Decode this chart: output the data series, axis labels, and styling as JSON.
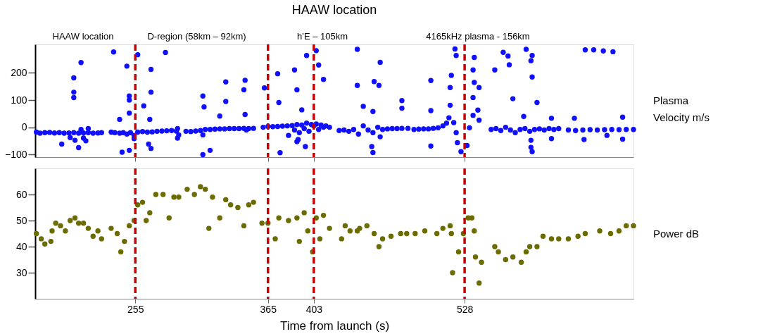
{
  "chart_data": [
    {
      "type": "scatter",
      "title": "HAAW location",
      "annotations": [
        "HAAW location",
        "D-region (58km – 92km)",
        "h’E – 105km",
        "4165kHz plasma - 156km"
      ],
      "ylabel": "Plasma Velocity m/s",
      "xlim": [
        172,
        668
      ],
      "xticks": [
        255,
        365,
        403,
        528
      ],
      "ylim": [
        -110,
        305
      ],
      "yticks": [
        -100,
        0,
        100,
        200
      ],
      "tick_labels": "y",
      "grid": false,
      "marker": "circle",
      "ref_lines": [
        {
          "axis": "x",
          "value": 255,
          "color": "#cc0000",
          "line_style": "dashed"
        },
        {
          "axis": "x",
          "value": 365,
          "color": "#cc0000",
          "line_style": "dashed"
        },
        {
          "axis": "x",
          "value": 403,
          "color": "#cc0000",
          "line_style": "dashed"
        },
        {
          "axis": "x",
          "value": 528,
          "color": "#cc0000",
          "line_style": "dashed"
        }
      ],
      "series": [
        {
          "color": "#1010ff",
          "x": [
            173,
            176,
            180,
            184,
            188,
            192,
            196,
            200,
            204,
            208,
            212,
            216,
            220,
            224,
            227,
            201,
            205,
            212,
            214,
            216,
            210,
            194,
            204,
            204,
            204,
            210,
            208,
            237,
            248,
            250,
            250,
            250,
            242,
            244,
            250,
            235,
            238,
            242,
            245,
            248,
            251,
            254,
            254,
            257,
            280,
            268,
            268,
            262,
            267,
            266,
            268,
            257,
            261,
            265,
            269,
            273,
            277,
            281,
            285,
            289,
            290,
            290,
            291,
            311,
            312,
            330,
            330,
            325,
            311,
            317,
            346,
            345,
            346,
            297,
            301,
            305,
            309,
            311,
            313,
            317,
            321,
            325,
            329,
            333,
            337,
            341,
            345,
            347,
            349,
            353,
            362,
            373,
            374,
            387,
            389,
            393,
            397,
            405,
            407,
            411,
            375,
            389,
            396,
            361,
            365,
            369,
            373,
            377,
            381,
            385,
            387,
            389,
            391,
            393,
            395,
            397,
            399,
            401,
            403,
            405,
            407,
            409,
            411,
            413,
            416,
            382,
            390,
            439,
            439,
            458,
            453,
            457,
            444,
            476,
            476,
            452,
            451,
            452,
            424,
            428,
            432,
            436,
            440,
            444,
            448,
            452,
            456,
            458,
            460,
            464,
            468,
            472,
            476,
            481,
            486,
            490,
            494,
            498,
            502,
            506,
            510,
            513,
            500,
            500,
            500,
            517,
            520,
            521,
            515,
            516,
            516,
            519,
            521,
            522,
            525,
            530,
            532,
            535,
            535,
            536,
            535,
            536,
            539,
            540,
            540,
            553,
            560,
            564,
            565,
            579,
            584,
            583,
            584,
            568,
            588,
            577,
            600,
            583,
            583,
            584,
            600,
            550,
            554,
            558,
            562,
            566,
            570,
            574,
            578,
            582,
            586,
            590,
            594,
            598,
            602,
            606,
            628,
            635,
            643,
            651,
            619,
            659,
            627,
            646,
            659,
            614,
            620,
            626,
            632,
            638,
            644,
            650,
            656,
            662,
            668
          ],
          "values": [
            -18,
            -22,
            -20,
            -19,
            -21,
            -20,
            -22,
            -21,
            -20,
            -22,
            -21,
            -20,
            -22,
            -21,
            -20,
            -38,
            -48,
            -40,
            -50,
            -5,
            -8,
            -62,
            182,
            129,
            109,
            238,
            -75,
            277,
            225,
            115,
            100,
            52,
            29,
            -92,
            -85,
            -18,
            -20,
            -22,
            -20,
            -25,
            -20,
            -30,
            -42,
            267,
            275,
            213,
            129,
            79,
            29,
            -62,
            -78,
            -18,
            -16,
            -18,
            -17,
            -15,
            -14,
            -13,
            -12,
            -14,
            -40,
            -5,
            -28,
            115,
            75,
            167,
            95,
            41,
            -101,
            -85,
            173,
            138,
            47,
            -15,
            -16,
            -14,
            -12,
            -28,
            -8,
            -8,
            -7,
            -6,
            -6,
            -5,
            -5,
            -5,
            -4,
            -10,
            -5,
            -4,
            145,
            197,
            91,
            211,
            138,
            64,
            264,
            282,
            229,
            176,
            -94,
            -53,
            -71,
            0,
            3,
            2,
            3,
            4,
            5,
            6,
            -10,
            10,
            -20,
            8,
            -5,
            15,
            -15,
            10,
            5,
            12,
            -8,
            8,
            0,
            5,
            0,
            -30,
            -45,
            287,
            154,
            239,
            168,
            154,
            77,
            98,
            70,
            58,
            -71,
            -93,
            -12,
            -10,
            -15,
            -8,
            -25,
            5,
            -10,
            -20,
            0,
            -35,
            -8,
            -6,
            -5,
            -5,
            -4,
            -4,
            -8,
            -7,
            -6,
            -6,
            -4,
            -2,
            5,
            15,
            172,
            61,
            -69,
            191,
            288,
            264,
            35,
            81,
            146,
            17,
            -20,
            -57,
            -90,
            -67,
            -2,
            44,
            109,
            165,
            211,
            257,
            63,
            146,
            26,
            211,
            276,
            262,
            230,
            287,
            264,
            245,
            185,
            105,
            91,
            40,
            33,
            -48,
            -74,
            -90,
            -42,
            -8,
            -5,
            -12,
            0,
            -10,
            -20,
            -8,
            -5,
            -15,
            -8,
            -6,
            -10,
            -5,
            -8,
            -5,
            285,
            285,
            281,
            278,
            33,
            37,
            -45,
            -30,
            -44,
            -10,
            -12,
            -10,
            -9,
            -10,
            -9,
            -8,
            -9,
            -8,
            -8
          ]
        }
      ]
    },
    {
      "type": "scatter",
      "xlabel": "Time from launch (s)",
      "ylabel": "Power dB",
      "xlim": [
        172,
        668
      ],
      "xticks": [
        255,
        365,
        403,
        528
      ],
      "ylim": [
        20,
        70
      ],
      "yticks": [
        30,
        40,
        50,
        60
      ],
      "grid": false,
      "marker": "circle",
      "ref_lines": [
        {
          "axis": "x",
          "value": 255,
          "color": "#cc0000",
          "line_style": "dashed"
        },
        {
          "axis": "x",
          "value": 365,
          "color": "#cc0000",
          "line_style": "dashed"
        },
        {
          "axis": "x",
          "value": 403,
          "color": "#cc0000",
          "line_style": "dashed"
        },
        {
          "axis": "x",
          "value": 528,
          "color": "#cc0000",
          "line_style": "dashed"
        }
      ],
      "series": [
        {
          "color": "#6b6b00",
          "x": [
            173,
            177,
            180,
            185,
            186,
            189,
            193,
            197,
            201,
            205,
            208,
            212,
            216,
            220,
            224,
            227,
            235,
            240,
            243,
            246,
            250,
            254,
            257,
            261,
            264,
            267,
            272,
            278,
            283,
            287,
            291,
            298,
            304,
            309,
            313,
            316,
            319,
            325,
            330,
            334,
            340,
            345,
            349,
            353,
            360,
            365,
            371,
            374,
            382,
            389,
            391,
            395,
            398,
            402,
            405,
            408,
            411,
            416,
            426,
            429,
            433,
            439,
            441,
            447,
            453,
            457,
            460,
            467,
            475,
            480,
            487,
            495,
            505,
            510,
            516,
            517,
            518,
            523,
            527,
            531,
            534,
            536,
            537,
            540,
            542,
            553,
            556,
            562,
            568,
            575,
            579,
            582,
            588,
            593,
            600,
            606,
            614,
            622,
            628,
            640,
            649,
            656,
            662,
            668
          ],
          "values": [
            45,
            43,
            41,
            42,
            46,
            49,
            48,
            46,
            50,
            51,
            49,
            49,
            47,
            44,
            46,
            43,
            47,
            45,
            38,
            42,
            48,
            50,
            56,
            57,
            50,
            53,
            60,
            60,
            51,
            59,
            59,
            62,
            60,
            63,
            62,
            47,
            59,
            51,
            58,
            56,
            55,
            48,
            56,
            57,
            49,
            49,
            43,
            51,
            50,
            51,
            42,
            53,
            46,
            38,
            51,
            43,
            52,
            47,
            43,
            48,
            46,
            46,
            47,
            48,
            45,
            40,
            43,
            44,
            45,
            45,
            45,
            46,
            45,
            47,
            48,
            45,
            30,
            38,
            45,
            51,
            51,
            46,
            36,
            26,
            34,
            40,
            38,
            35,
            36,
            34,
            38,
            40,
            40,
            44,
            43,
            43,
            43,
            44,
            45,
            46,
            45,
            46,
            48,
            48
          ]
        }
      ]
    }
  ]
}
